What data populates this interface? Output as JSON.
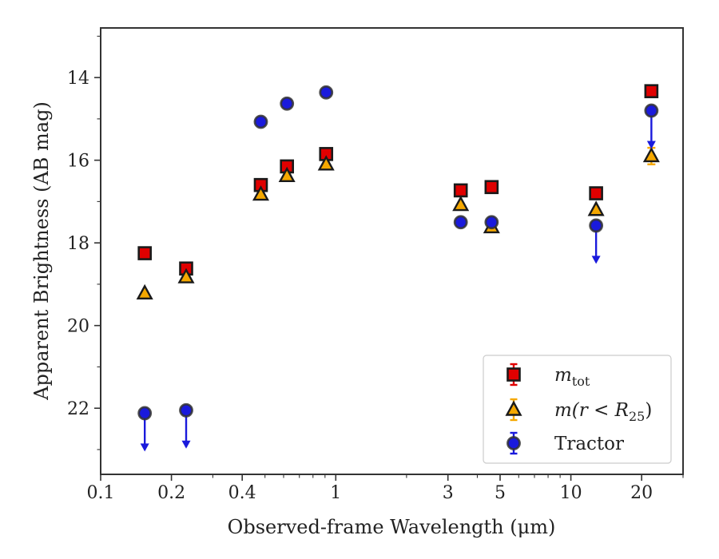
{
  "chart_data": {
    "type": "scatter",
    "xlabel": "Observed-frame Wavelength (μm)",
    "ylabel": "Apparent Brightness (AB mag)",
    "xscale": "log",
    "xlim": [
      0.1,
      30
    ],
    "ylim": [
      23.6,
      12.8
    ],
    "y_inverted": true,
    "x_ticks": [
      0.1,
      0.2,
      0.4,
      1,
      3,
      5,
      10,
      20
    ],
    "x_tick_labels": [
      "0.1",
      "0.2",
      "0.4",
      "1",
      "3",
      "5",
      "10",
      "20"
    ],
    "y_ticks": [
      14,
      16,
      18,
      20,
      22
    ],
    "y_tick_labels": [
      "14",
      "16",
      "18",
      "20",
      "22"
    ],
    "grid": false,
    "legend_position": "lower-right",
    "series": [
      {
        "name": "m_tot",
        "legend_main": "m",
        "legend_sub": "tot",
        "marker": "square",
        "face_color": "#e00000",
        "edge_color": "#1a1a1a",
        "error_color": "#e00000",
        "points": [
          {
            "x": 0.154,
            "y": 18.25
          },
          {
            "x": 0.231,
            "y": 18.62
          },
          {
            "x": 0.48,
            "y": 16.6
          },
          {
            "x": 0.62,
            "y": 16.15
          },
          {
            "x": 0.91,
            "y": 15.85
          },
          {
            "x": 3.4,
            "y": 16.73
          },
          {
            "x": 4.6,
            "y": 16.65
          },
          {
            "x": 12.8,
            "y": 16.8
          },
          {
            "x": 22.0,
            "y": 14.33
          }
        ]
      },
      {
        "name": "m(r < R25)",
        "legend_main": "m(r < R",
        "legend_sub": "25",
        "legend_tail": ")",
        "marker": "triangle",
        "face_color": "#f5a800",
        "edge_color": "#1a1a1a",
        "error_color": "#f5a800",
        "points": [
          {
            "x": 0.154,
            "y": 19.22
          },
          {
            "x": 0.231,
            "y": 18.83
          },
          {
            "x": 0.48,
            "y": 16.83
          },
          {
            "x": 0.62,
            "y": 16.38
          },
          {
            "x": 0.91,
            "y": 16.1
          },
          {
            "x": 3.4,
            "y": 17.08
          },
          {
            "x": 4.6,
            "y": 17.62
          },
          {
            "x": 12.8,
            "y": 17.2
          },
          {
            "x": 22.0,
            "y": 15.9,
            "yerr": 0.4
          }
        ]
      },
      {
        "name": "Tractor",
        "legend_main": "Tractor",
        "marker": "circle",
        "face_color": "#1a1adc",
        "edge_color": "#333333",
        "error_color": "#1a1adc",
        "points": [
          {
            "x": 0.154,
            "y": 22.12,
            "upper_limit": true
          },
          {
            "x": 0.231,
            "y": 22.05,
            "upper_limit": true
          },
          {
            "x": 0.48,
            "y": 15.07
          },
          {
            "x": 0.62,
            "y": 14.63
          },
          {
            "x": 0.91,
            "y": 14.36
          },
          {
            "x": 3.4,
            "y": 17.5
          },
          {
            "x": 4.6,
            "y": 17.5
          },
          {
            "x": 12.8,
            "y": 17.58,
            "upper_limit": true
          },
          {
            "x": 22.0,
            "y": 14.8,
            "upper_limit": true
          }
        ]
      }
    ]
  }
}
